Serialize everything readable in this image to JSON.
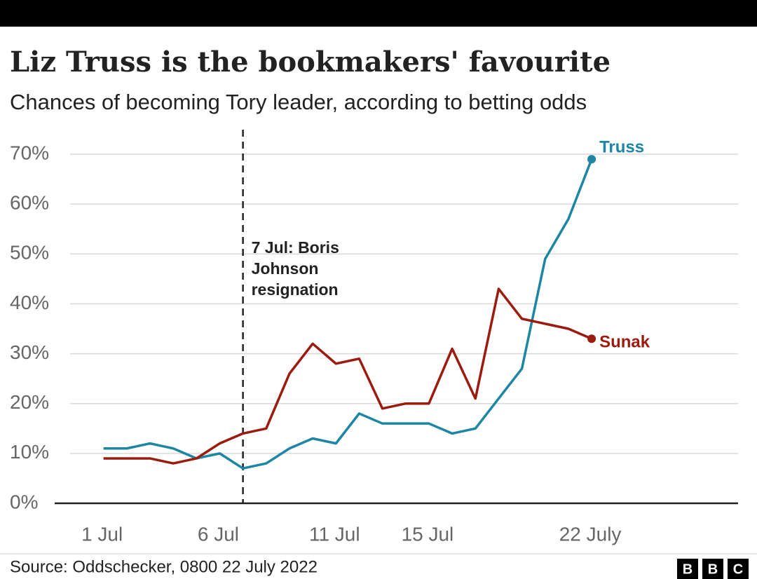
{
  "chart_data": {
    "type": "line",
    "title": "Liz Truss is the bookmakers' favourite",
    "subtitle": "Chances of becoming Tory leader, according to betting odds",
    "x": [
      1,
      2,
      3,
      4,
      5,
      6,
      7,
      8,
      9,
      10,
      11,
      12,
      13,
      14,
      15,
      16,
      17,
      18,
      19,
      20,
      21,
      22
    ],
    "xlim": [
      -1.1,
      28.3
    ],
    "xticks": [
      {
        "value": 1,
        "label": "1 Jul"
      },
      {
        "value": 6,
        "label": "6 Jul"
      },
      {
        "value": 11,
        "label": "11 Jul"
      },
      {
        "value": 15,
        "label": "15 Jul"
      },
      {
        "value": 22,
        "label": "22 July"
      }
    ],
    "ylim": [
      0,
      70
    ],
    "yticks": [
      {
        "value": 0,
        "label": "0%"
      },
      {
        "value": 10,
        "label": "10%"
      },
      {
        "value": 20,
        "label": "20%"
      },
      {
        "value": 30,
        "label": "30%"
      },
      {
        "value": 40,
        "label": "40%"
      },
      {
        "value": 50,
        "label": "50%"
      },
      {
        "value": 60,
        "label": "60%"
      },
      {
        "value": 70,
        "label": "70%"
      }
    ],
    "grid": true,
    "series": [
      {
        "name": "Truss",
        "color": "#1c86a3",
        "values": [
          11,
          11,
          12,
          11,
          9,
          10,
          7,
          8,
          11,
          13,
          12,
          18,
          16,
          16,
          16,
          14,
          15,
          21,
          27,
          49,
          57,
          69
        ]
      },
      {
        "name": "Sunak",
        "color": "#9b1b0e",
        "values": [
          9,
          9,
          9,
          8,
          9,
          12,
          14,
          15,
          26,
          32,
          28,
          29,
          19,
          20,
          20,
          31,
          21,
          43,
          37,
          36,
          35,
          33
        ]
      }
    ],
    "annotation": {
      "x": 7,
      "text": [
        "7 Jul: Boris",
        "Johnson",
        "resignation"
      ]
    },
    "source": "Source: Oddschecker, 0800 22 July 2022",
    "logo": [
      "B",
      "B",
      "C"
    ]
  }
}
